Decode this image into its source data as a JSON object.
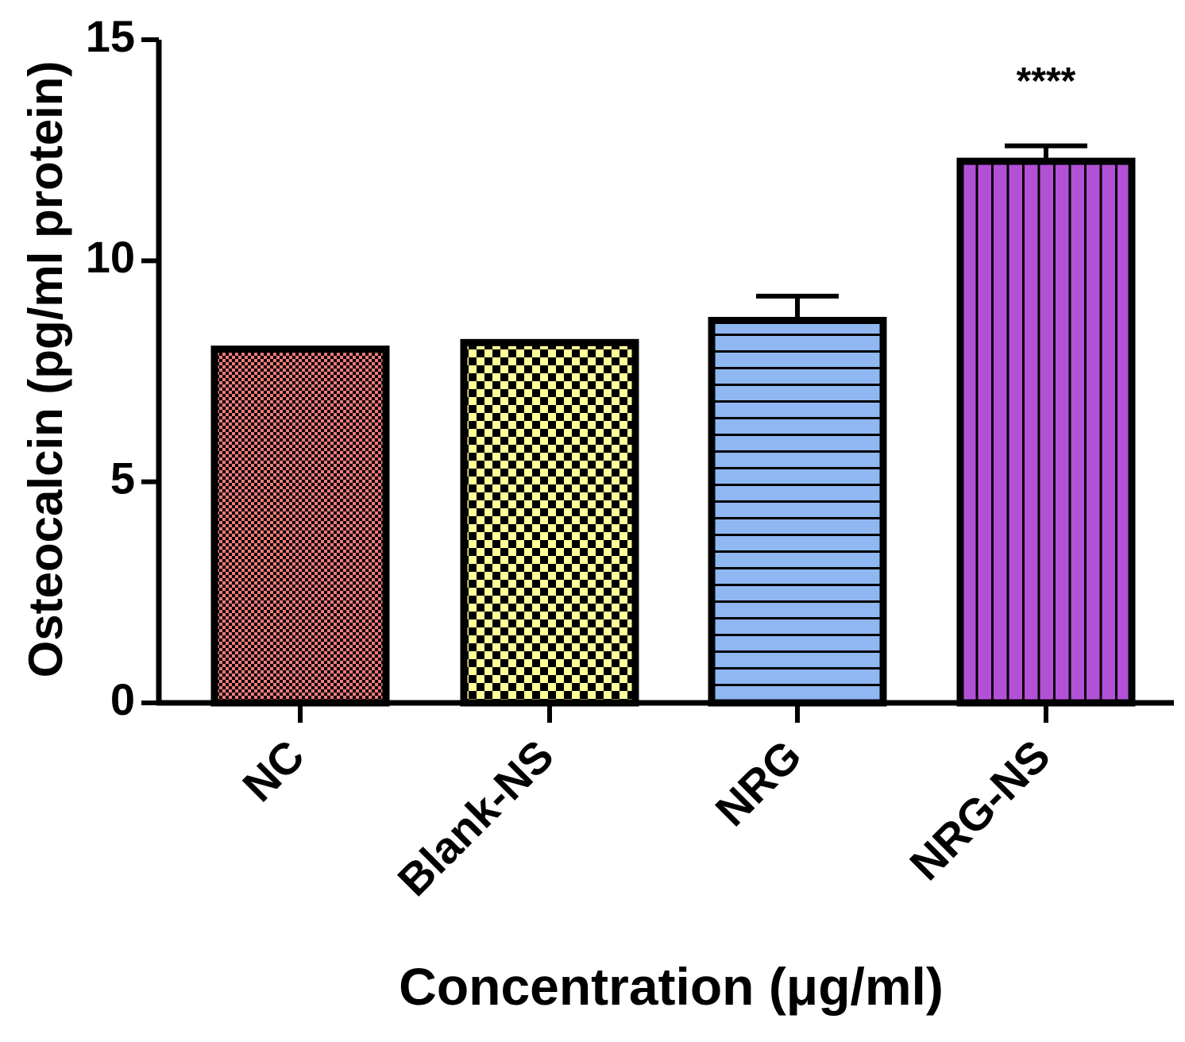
{
  "chart_data": {
    "type": "bar",
    "title": "",
    "xlabel": "Concentration (μg/ml)",
    "ylabel": "Osteocalcin (pg/ml protein)",
    "ylim": [
      0,
      15
    ],
    "yticks": [
      0,
      5,
      10,
      15
    ],
    "grid": false,
    "categories": [
      "NC",
      "Blank-NS",
      "NRG",
      "NRG-NS"
    ],
    "values": [
      8.0,
      8.15,
      8.65,
      12.25
    ],
    "errors": [
      0.02,
      0.03,
      0.55,
      0.35
    ],
    "significance": [
      "",
      "",
      "",
      "****"
    ],
    "colors": [
      "#f27a7a",
      "#ffff99",
      "#8fb8f2",
      "#b251d6"
    ],
    "patterns": [
      "fine-checker",
      "checker",
      "horizontal-lines",
      "vertical-lines"
    ]
  }
}
